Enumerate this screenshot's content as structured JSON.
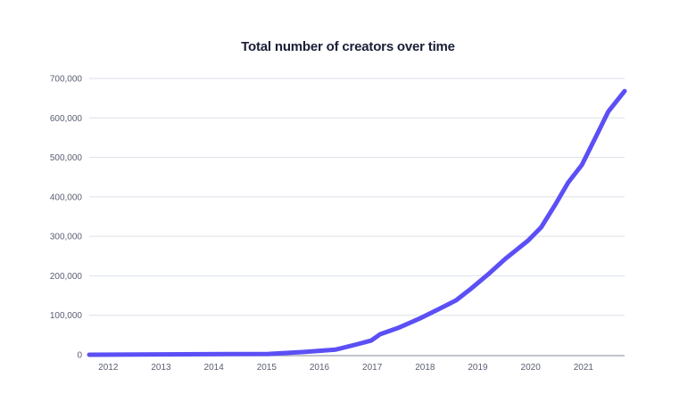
{
  "chart_data": {
    "type": "line",
    "title": "Total number of creators over time",
    "xlabel": "",
    "ylabel": "",
    "xlim": [
      2011.64,
      2021.78
    ],
    "ylim": [
      0,
      700000
    ],
    "grid": true,
    "legend": "none",
    "x_ticks": [
      2012,
      2013,
      2014,
      2015,
      2016,
      2017,
      2018,
      2019,
      2020,
      2021
    ],
    "x_tick_labels": [
      "2012",
      "2013",
      "2014",
      "2015",
      "2016",
      "2017",
      "2018",
      "2019",
      "2020",
      "2021"
    ],
    "y_ticks": [
      0,
      100000,
      200000,
      300000,
      400000,
      500000,
      600000,
      700000
    ],
    "y_tick_labels": [
      "0",
      "100,000",
      "200,000",
      "300,000",
      "400,000",
      "500,000",
      "600,000",
      "700,000"
    ],
    "series": [
      {
        "color": "#5b4ff5",
        "x": [
          2011.64,
          2015.03,
          2015.71,
          2016.31,
          2016.73,
          2016.98,
          2017.15,
          2017.49,
          2017.92,
          2018.25,
          2018.59,
          2018.85,
          2019.19,
          2019.53,
          2019.95,
          2020.2,
          2020.46,
          2020.71,
          2020.97,
          2021.22,
          2021.47,
          2021.78
        ],
        "y": [
          0,
          2000,
          7000,
          13000,
          27000,
          36000,
          52000,
          68000,
          93000,
          115000,
          138000,
          165000,
          203000,
          244000,
          289000,
          323000,
          379000,
          436000,
          481000,
          548000,
          616000,
          668000
        ]
      }
    ]
  }
}
